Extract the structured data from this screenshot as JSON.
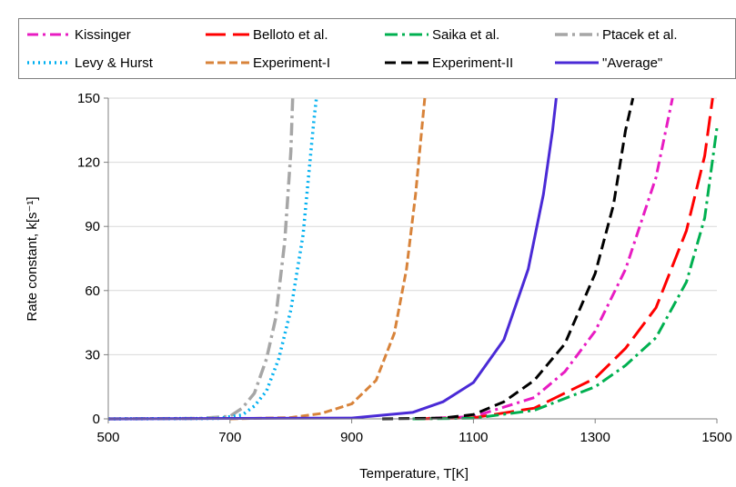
{
  "chart_data": {
    "type": "line",
    "xlabel": "Temperature, T[K]",
    "ylabel": "Rate constant, k[s⁻¹]",
    "xlim": [
      500,
      1500
    ],
    "ylim": [
      0,
      150
    ],
    "x_ticks": [
      "500",
      "700",
      "900",
      "1100",
      "1300",
      "1500"
    ],
    "y_ticks": [
      "0",
      "30",
      "60",
      "90",
      "120",
      "150"
    ],
    "grid": "horizontal",
    "legend_position": "top",
    "series": [
      {
        "name": "Kissinger",
        "color": "#e81cc2",
        "dash": "12 5 3 5",
        "width": 3,
        "points": [
          [
            1000,
            0
          ],
          [
            1100,
            1
          ],
          [
            1200,
            10
          ],
          [
            1250,
            22
          ],
          [
            1300,
            41
          ],
          [
            1350,
            70
          ],
          [
            1400,
            113
          ],
          [
            1427,
            150
          ]
        ]
      },
      {
        "name": "Belloto et al.",
        "color": "#ff0000",
        "dash": "22 8",
        "width": 3,
        "points": [
          [
            1000,
            0
          ],
          [
            1100,
            0.5
          ],
          [
            1200,
            5
          ],
          [
            1300,
            19
          ],
          [
            1350,
            33
          ],
          [
            1400,
            52
          ],
          [
            1450,
            88
          ],
          [
            1480,
            123
          ],
          [
            1493,
            150
          ]
        ]
      },
      {
        "name": "Saika et al.",
        "color": "#00b050",
        "dash": "14 5 3 5",
        "width": 3,
        "points": [
          [
            1000,
            0
          ],
          [
            1100,
            0.3
          ],
          [
            1200,
            4
          ],
          [
            1300,
            15
          ],
          [
            1350,
            25
          ],
          [
            1400,
            38
          ],
          [
            1450,
            64
          ],
          [
            1480,
            94
          ],
          [
            1500,
            136
          ]
        ]
      },
      {
        "name": "Ptacek et al.",
        "color": "#a6a6a6",
        "dash": "14 5 3 5",
        "width": 3.5,
        "points": [
          [
            500,
            0
          ],
          [
            650,
            0.2
          ],
          [
            700,
            1.2
          ],
          [
            720,
            5
          ],
          [
            740,
            12
          ],
          [
            760,
            28
          ],
          [
            775,
            47
          ],
          [
            790,
            83
          ],
          [
            800,
            125
          ],
          [
            803,
            150
          ]
        ]
      },
      {
        "name": "Levy & Hurst",
        "color": "#00b0f0",
        "dash": "2 4",
        "width": 3.5,
        "points": [
          [
            500,
            0
          ],
          [
            680,
            0.2
          ],
          [
            720,
            1.8
          ],
          [
            740,
            6
          ],
          [
            760,
            13
          ],
          [
            780,
            28
          ],
          [
            800,
            51
          ],
          [
            820,
            86
          ],
          [
            838,
            140
          ],
          [
            842,
            150
          ]
        ]
      },
      {
        "name": "Experiment-I",
        "color": "#d8833a",
        "dash": "9 4",
        "width": 3,
        "points": [
          [
            700,
            0
          ],
          [
            800,
            0.6
          ],
          [
            850,
            2.5
          ],
          [
            900,
            7
          ],
          [
            940,
            18
          ],
          [
            970,
            40
          ],
          [
            990,
            70
          ],
          [
            1005,
            105
          ],
          [
            1015,
            135
          ],
          [
            1020,
            150
          ]
        ]
      },
      {
        "name": "Experiment-II",
        "color": "#000000",
        "dash": "12 6",
        "width": 3,
        "points": [
          [
            950,
            0
          ],
          [
            1050,
            0.4
          ],
          [
            1100,
            2
          ],
          [
            1150,
            8
          ],
          [
            1200,
            18
          ],
          [
            1250,
            35
          ],
          [
            1300,
            68
          ],
          [
            1330,
            100
          ],
          [
            1350,
            135
          ],
          [
            1362,
            150
          ]
        ]
      },
      {
        "name": "\"Average\"",
        "color": "#4a2ad6",
        "dash": "",
        "width": 3,
        "points": [
          [
            500,
            0
          ],
          [
            900,
            0.4
          ],
          [
            1000,
            3
          ],
          [
            1050,
            8
          ],
          [
            1100,
            17
          ],
          [
            1150,
            37
          ],
          [
            1190,
            70
          ],
          [
            1215,
            105
          ],
          [
            1230,
            135
          ],
          [
            1236,
            150
          ]
        ]
      }
    ]
  }
}
